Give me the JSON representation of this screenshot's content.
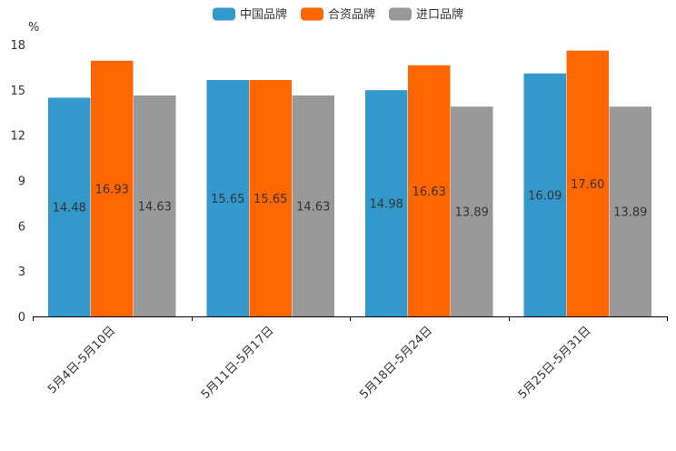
{
  "chart_data": {
    "type": "bar",
    "title": "",
    "xlabel": "",
    "ylabel": "%",
    "ylim": [
      0,
      18
    ],
    "yticks": [
      0,
      3,
      6,
      9,
      12,
      15,
      18
    ],
    "categories": [
      "5月4日-5月10日",
      "5月11日-5月17日",
      "5月18日-5月24日",
      "5月25日-5月31日"
    ],
    "series": [
      {
        "name": "中国品牌",
        "color": "#3399cc",
        "values": [
          14.48,
          15.65,
          14.98,
          16.09
        ]
      },
      {
        "name": "合资品牌",
        "color": "#ff6600",
        "values": [
          16.93,
          15.65,
          16.63,
          17.6
        ]
      },
      {
        "name": "进口品牌",
        "color": "#999999",
        "values": [
          14.63,
          14.63,
          13.89,
          13.89
        ]
      }
    ],
    "value_labels": [
      [
        "14.48",
        "15.65",
        "14.98",
        "16.09"
      ],
      [
        "16.93",
        "15.65",
        "16.63",
        "17.60"
      ],
      [
        "14.63",
        "14.63",
        "13.89",
        "13.89"
      ]
    ],
    "legend_position": "top-center",
    "grid": false
  }
}
